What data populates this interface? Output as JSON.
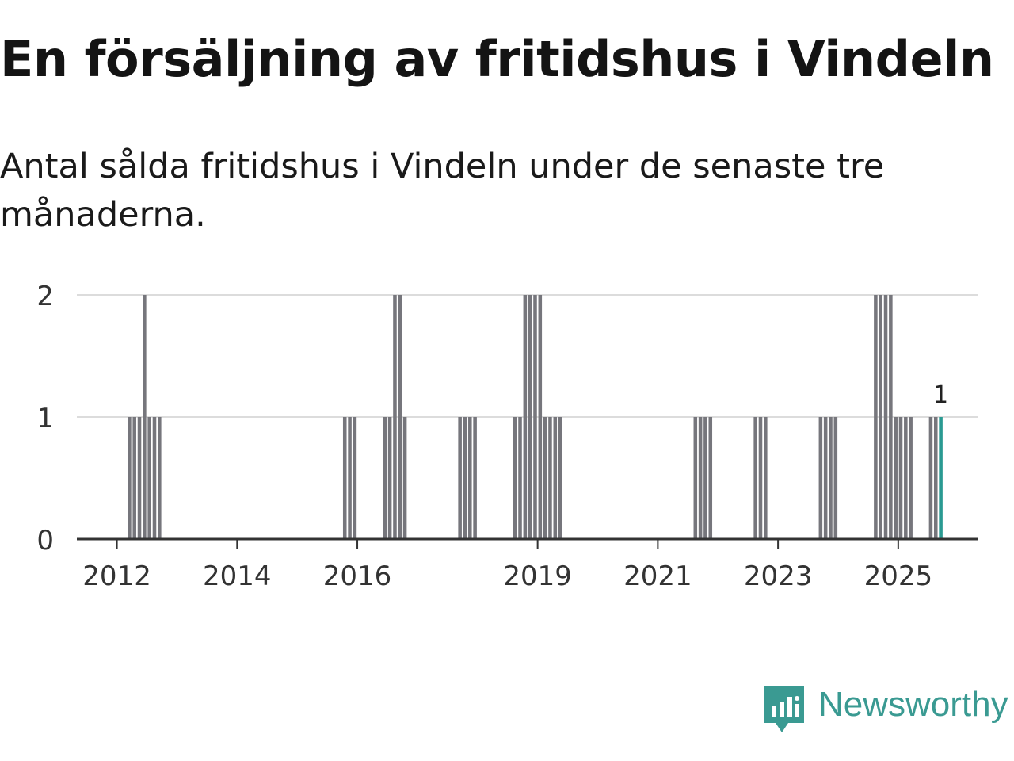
{
  "header": {
    "title": "En försäljning av fritidshus i Vindeln",
    "subtitle": "Antal sålda fritidshus i Vindeln under de senaste tre månaderna."
  },
  "brand": {
    "name": "Newsworthy",
    "icon": "newsworthy-logo-icon",
    "color": "#3a9a92"
  },
  "chart_data": {
    "type": "bar",
    "title": "En försäljning av fritidshus i Vindeln",
    "subtitle": "Antal sålda fritidshus i Vindeln under de senaste tre månaderna.",
    "xlabel": "",
    "ylabel": "",
    "ylim": [
      0,
      2
    ],
    "yticks": [
      "0",
      "1",
      "2"
    ],
    "xticks": [
      "2012",
      "2014",
      "2016",
      "2019",
      "2021",
      "2023",
      "2025"
    ],
    "x_range": [
      "2011-05",
      "2026-05"
    ],
    "grid": true,
    "legend": "none",
    "bar_color": "#76767c",
    "highlight_color": "#2a9a92",
    "annotation": {
      "x": "2025-09",
      "text": "1"
    },
    "series": [
      {
        "x": [
          "2012-03",
          "2012-04",
          "2012-05",
          "2012-06",
          "2012-07",
          "2012-08",
          "2012-09",
          "2015-10",
          "2015-11",
          "2015-12",
          "2016-06",
          "2016-07",
          "2016-08",
          "2016-09",
          "2016-10",
          "2017-09",
          "2017-10",
          "2017-11",
          "2017-12",
          "2018-08",
          "2018-09",
          "2018-10",
          "2018-11",
          "2018-12",
          "2019-01",
          "2019-02",
          "2019-03",
          "2019-04",
          "2019-05",
          "2021-08",
          "2021-09",
          "2021-10",
          "2021-11",
          "2022-08",
          "2022-09",
          "2022-10",
          "2023-09",
          "2023-10",
          "2023-11",
          "2023-12",
          "2024-08",
          "2024-09",
          "2024-10",
          "2024-11",
          "2024-12",
          "2025-01",
          "2025-02",
          "2025-03",
          "2025-07",
          "2025-08",
          "2025-09"
        ],
        "values": [
          1,
          1,
          1,
          2,
          1,
          1,
          1,
          1,
          1,
          1,
          1,
          1,
          2,
          2,
          1,
          1,
          1,
          1,
          1,
          1,
          1,
          2,
          2,
          2,
          2,
          1,
          1,
          1,
          1,
          1,
          1,
          1,
          1,
          1,
          1,
          1,
          1,
          1,
          1,
          1,
          2,
          2,
          2,
          2,
          1,
          1,
          1,
          1,
          1,
          1,
          1
        ]
      }
    ]
  }
}
